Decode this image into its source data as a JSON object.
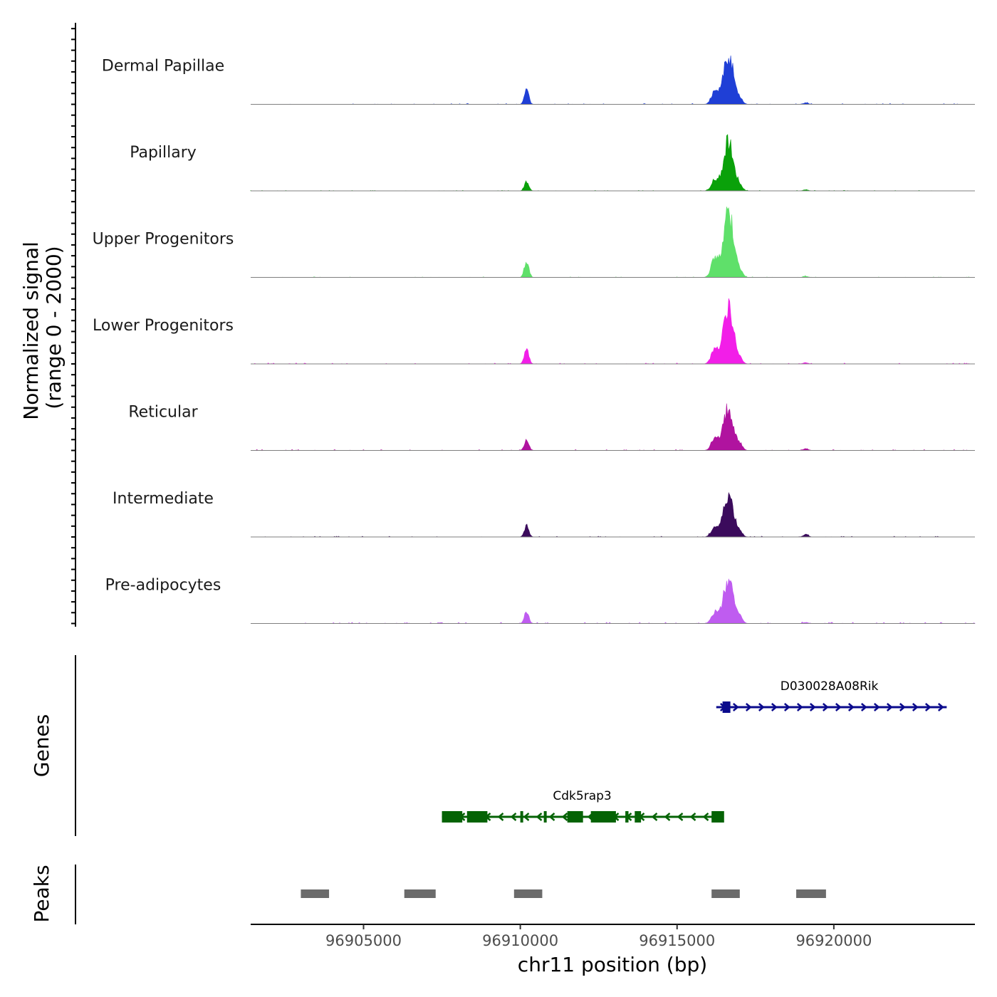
{
  "chart_data": {
    "type": "area",
    "description": "Genome browser coverage plot",
    "y_axis_title_line1": "Normalized signal",
    "y_axis_title_line2": "(range 0 - 2000)",
    "y_range": [
      0,
      2000
    ],
    "xlabel": "chr11 position (bp)",
    "xlim": [
      96901400,
      96924500
    ],
    "x_ticks": [
      96905000,
      96910000,
      96915000,
      96920000
    ],
    "x_tick_labels": [
      "96905000",
      "96910000",
      "96915000",
      "96920000"
    ],
    "tracks": [
      {
        "name": "Dermal Papillae",
        "color": "#1f3fd6",
        "peaks": [
          [
            96910200,
            320,
            70
          ],
          [
            96916200,
            260,
            110
          ],
          [
            96916640,
            1150,
            160
          ],
          [
            96917000,
            120,
            90
          ],
          [
            96919100,
            35,
            80
          ]
        ],
        "noise": 18
      },
      {
        "name": "Papillary",
        "color": "#0aa10a",
        "peaks": [
          [
            96910200,
            210,
            70
          ],
          [
            96916200,
            230,
            110
          ],
          [
            96916640,
            1150,
            160
          ],
          [
            96917000,
            110,
            90
          ],
          [
            96919100,
            25,
            80
          ]
        ],
        "noise": 12
      },
      {
        "name": "Upper Progenitors",
        "color": "#5fe06a",
        "peaks": [
          [
            96910200,
            380,
            70
          ],
          [
            96916200,
            420,
            110
          ],
          [
            96916640,
            1500,
            160
          ],
          [
            96917000,
            130,
            90
          ],
          [
            96919100,
            25,
            80
          ]
        ],
        "noise": 14
      },
      {
        "name": "Lower Progenitors",
        "color": "#f21ee8",
        "peaks": [
          [
            96910200,
            360,
            70
          ],
          [
            96916200,
            340,
            110
          ],
          [
            96916640,
            1300,
            160
          ],
          [
            96917000,
            110,
            90
          ],
          [
            96919100,
            30,
            80
          ]
        ],
        "noise": 22
      },
      {
        "name": "Reticular",
        "color": "#b0139f",
        "peaks": [
          [
            96910200,
            260,
            70
          ],
          [
            96916200,
            260,
            110
          ],
          [
            96916640,
            980,
            160
          ],
          [
            96917000,
            120,
            90
          ],
          [
            96919100,
            40,
            80
          ]
        ],
        "noise": 20
      },
      {
        "name": "Intermediate",
        "color": "#3b0b5c",
        "peaks": [
          [
            96910200,
            260,
            70
          ],
          [
            96916200,
            220,
            110
          ],
          [
            96916640,
            1000,
            160
          ],
          [
            96917000,
            110,
            90
          ],
          [
            96919100,
            60,
            80
          ]
        ],
        "noise": 18
      },
      {
        "name": "Pre-adipocytes",
        "color": "#bf5cf0",
        "peaks": [
          [
            96910200,
            280,
            70
          ],
          [
            96916200,
            250,
            110
          ],
          [
            96916640,
            1020,
            160
          ],
          [
            96917000,
            120,
            90
          ],
          [
            96919100,
            25,
            80
          ]
        ],
        "noise": 28
      }
    ],
    "genes_title": "Genes",
    "genes": [
      {
        "name": "D030028A08Rik",
        "color": "#0a0a8c",
        "strand": "+",
        "start": 96916250,
        "end": 96923600,
        "exons": [
          [
            96916450,
            96916700
          ]
        ]
      },
      {
        "name": "Cdk5rap3",
        "color": "#056305",
        "strand": "-",
        "start": 96907500,
        "end": 96916450,
        "exons": [
          [
            96907500,
            96908150
          ],
          [
            96908300,
            96908950
          ],
          [
            96910000,
            96910080
          ],
          [
            96910750,
            96910830
          ],
          [
            96911500,
            96912000
          ],
          [
            96912250,
            96912700
          ],
          [
            96912700,
            96913050
          ],
          [
            96913350,
            96913450
          ],
          [
            96913650,
            96913850
          ],
          [
            96916100,
            96916500
          ]
        ]
      }
    ],
    "peaks_title": "Peaks",
    "peaks": [
      [
        96903000,
        96903900
      ],
      [
        96906300,
        96907300
      ],
      [
        96909800,
        96910700
      ],
      [
        96916100,
        96917000
      ],
      [
        96918800,
        96919750
      ]
    ],
    "peak_color": "#6b6b6b"
  }
}
